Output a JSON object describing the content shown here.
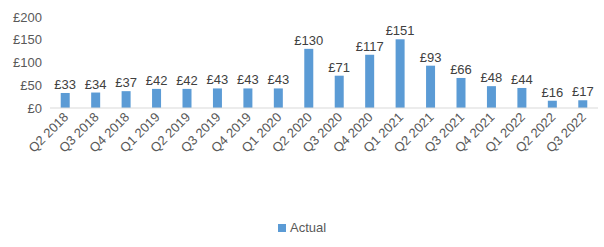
{
  "chart_data": {
    "type": "bar",
    "categories": [
      "Q2 2018",
      "Q3 2018",
      "Q4 2018",
      "Q1 2019",
      "Q2 2019",
      "Q3 2019",
      "Q4 2019",
      "Q1 2020",
      "Q2 2020",
      "Q3 2020",
      "Q4 2020",
      "Q1 2021",
      "Q2 2021",
      "Q3 2021",
      "Q4 2021",
      "Q1 2022",
      "Q2 2022",
      "Q3 2022"
    ],
    "series": [
      {
        "name": "Actual",
        "color": "#5b9bd5",
        "values": [
          33,
          34,
          37,
          42,
          42,
          43,
          43,
          43,
          130,
          71,
          117,
          151,
          93,
          66,
          48,
          44,
          16,
          17
        ],
        "value_labels": [
          "£33",
          "£34",
          "£37",
          "£42",
          "£42",
          "£43",
          "£43",
          "£43",
          "£130",
          "£71",
          "£117",
          "£151",
          "£93",
          "£66",
          "£48",
          "£44",
          "£16",
          "£17"
        ]
      }
    ],
    "ylim": [
      0,
      200
    ],
    "yticks": [
      {
        "value": 0,
        "label": "£0"
      },
      {
        "value": 50,
        "label": "£50"
      },
      {
        "value": 100,
        "label": "£100"
      },
      {
        "value": 150,
        "label": "£150"
      },
      {
        "value": 200,
        "label": "£200"
      }
    ],
    "grid": false,
    "legend": "bottom",
    "data_labels": true
  }
}
